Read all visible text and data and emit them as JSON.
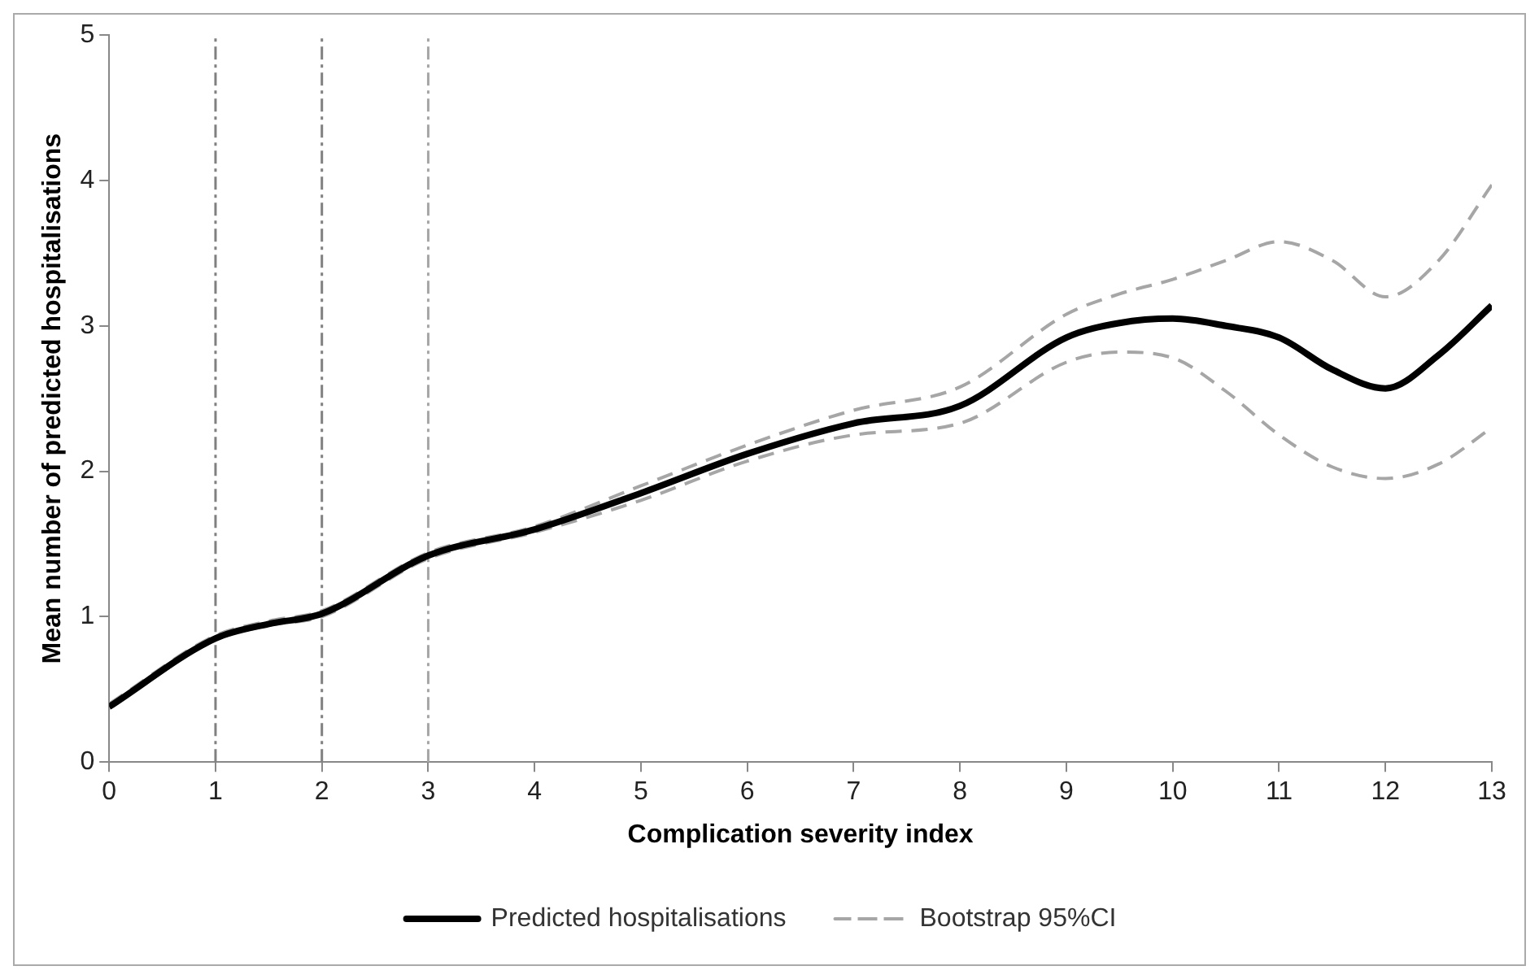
{
  "chart_data": {
    "type": "line",
    "xlabel": "Complication severity index",
    "ylabel": "Mean number of predicted hospitalisations",
    "x": [
      0,
      1,
      1.5,
      2,
      3,
      4,
      5,
      6,
      7,
      8,
      9,
      9.5,
      10,
      10.5,
      11,
      11.5,
      12,
      12.5,
      13
    ],
    "series": [
      {
        "name": "Predicted hospitalisations",
        "color": "#000000",
        "line_style": "solid",
        "values": [
          0.38,
          0.85,
          0.95,
          1.02,
          1.42,
          1.6,
          1.85,
          2.12,
          2.33,
          2.45,
          2.92,
          3.02,
          3.05,
          3.0,
          2.92,
          2.7,
          2.57,
          2.8,
          3.14
        ]
      },
      {
        "name": "Bootstrap 95%CI",
        "color": "#a6a6a6",
        "line_style": "dashed",
        "values": [
          0.4,
          0.87,
          0.97,
          1.04,
          1.44,
          1.62,
          1.9,
          2.18,
          2.42,
          2.58,
          3.08,
          3.22,
          3.32,
          3.45,
          3.58,
          3.45,
          3.2,
          3.45,
          3.97
        ]
      },
      {
        "color": "#a6a6a6",
        "line_style": "dashed",
        "values": [
          0.37,
          0.84,
          0.94,
          1.0,
          1.4,
          1.58,
          1.8,
          2.07,
          2.25,
          2.33,
          2.75,
          2.82,
          2.78,
          2.55,
          2.25,
          2.03,
          1.95,
          2.05,
          2.3
        ]
      }
    ],
    "xlim": [
      0,
      13
    ],
    "xticks": [
      0,
      1,
      2,
      3,
      4,
      5,
      6,
      7,
      8,
      9,
      10,
      11,
      12,
      13
    ],
    "ylim": [
      0,
      5
    ],
    "yticks": [
      0,
      1,
      2,
      3,
      4,
      5
    ],
    "grid": false,
    "legend": "bottom",
    "marker": "none",
    "ref_lines": [
      {
        "axis": "x",
        "value": 1,
        "color": "#808080",
        "line_style": "dashed"
      },
      {
        "axis": "x",
        "value": 2,
        "color": "#808080",
        "line_style": "dashed"
      },
      {
        "axis": "x",
        "value": 3,
        "color": "#a6a6a6",
        "line_style": "dashed"
      }
    ]
  }
}
